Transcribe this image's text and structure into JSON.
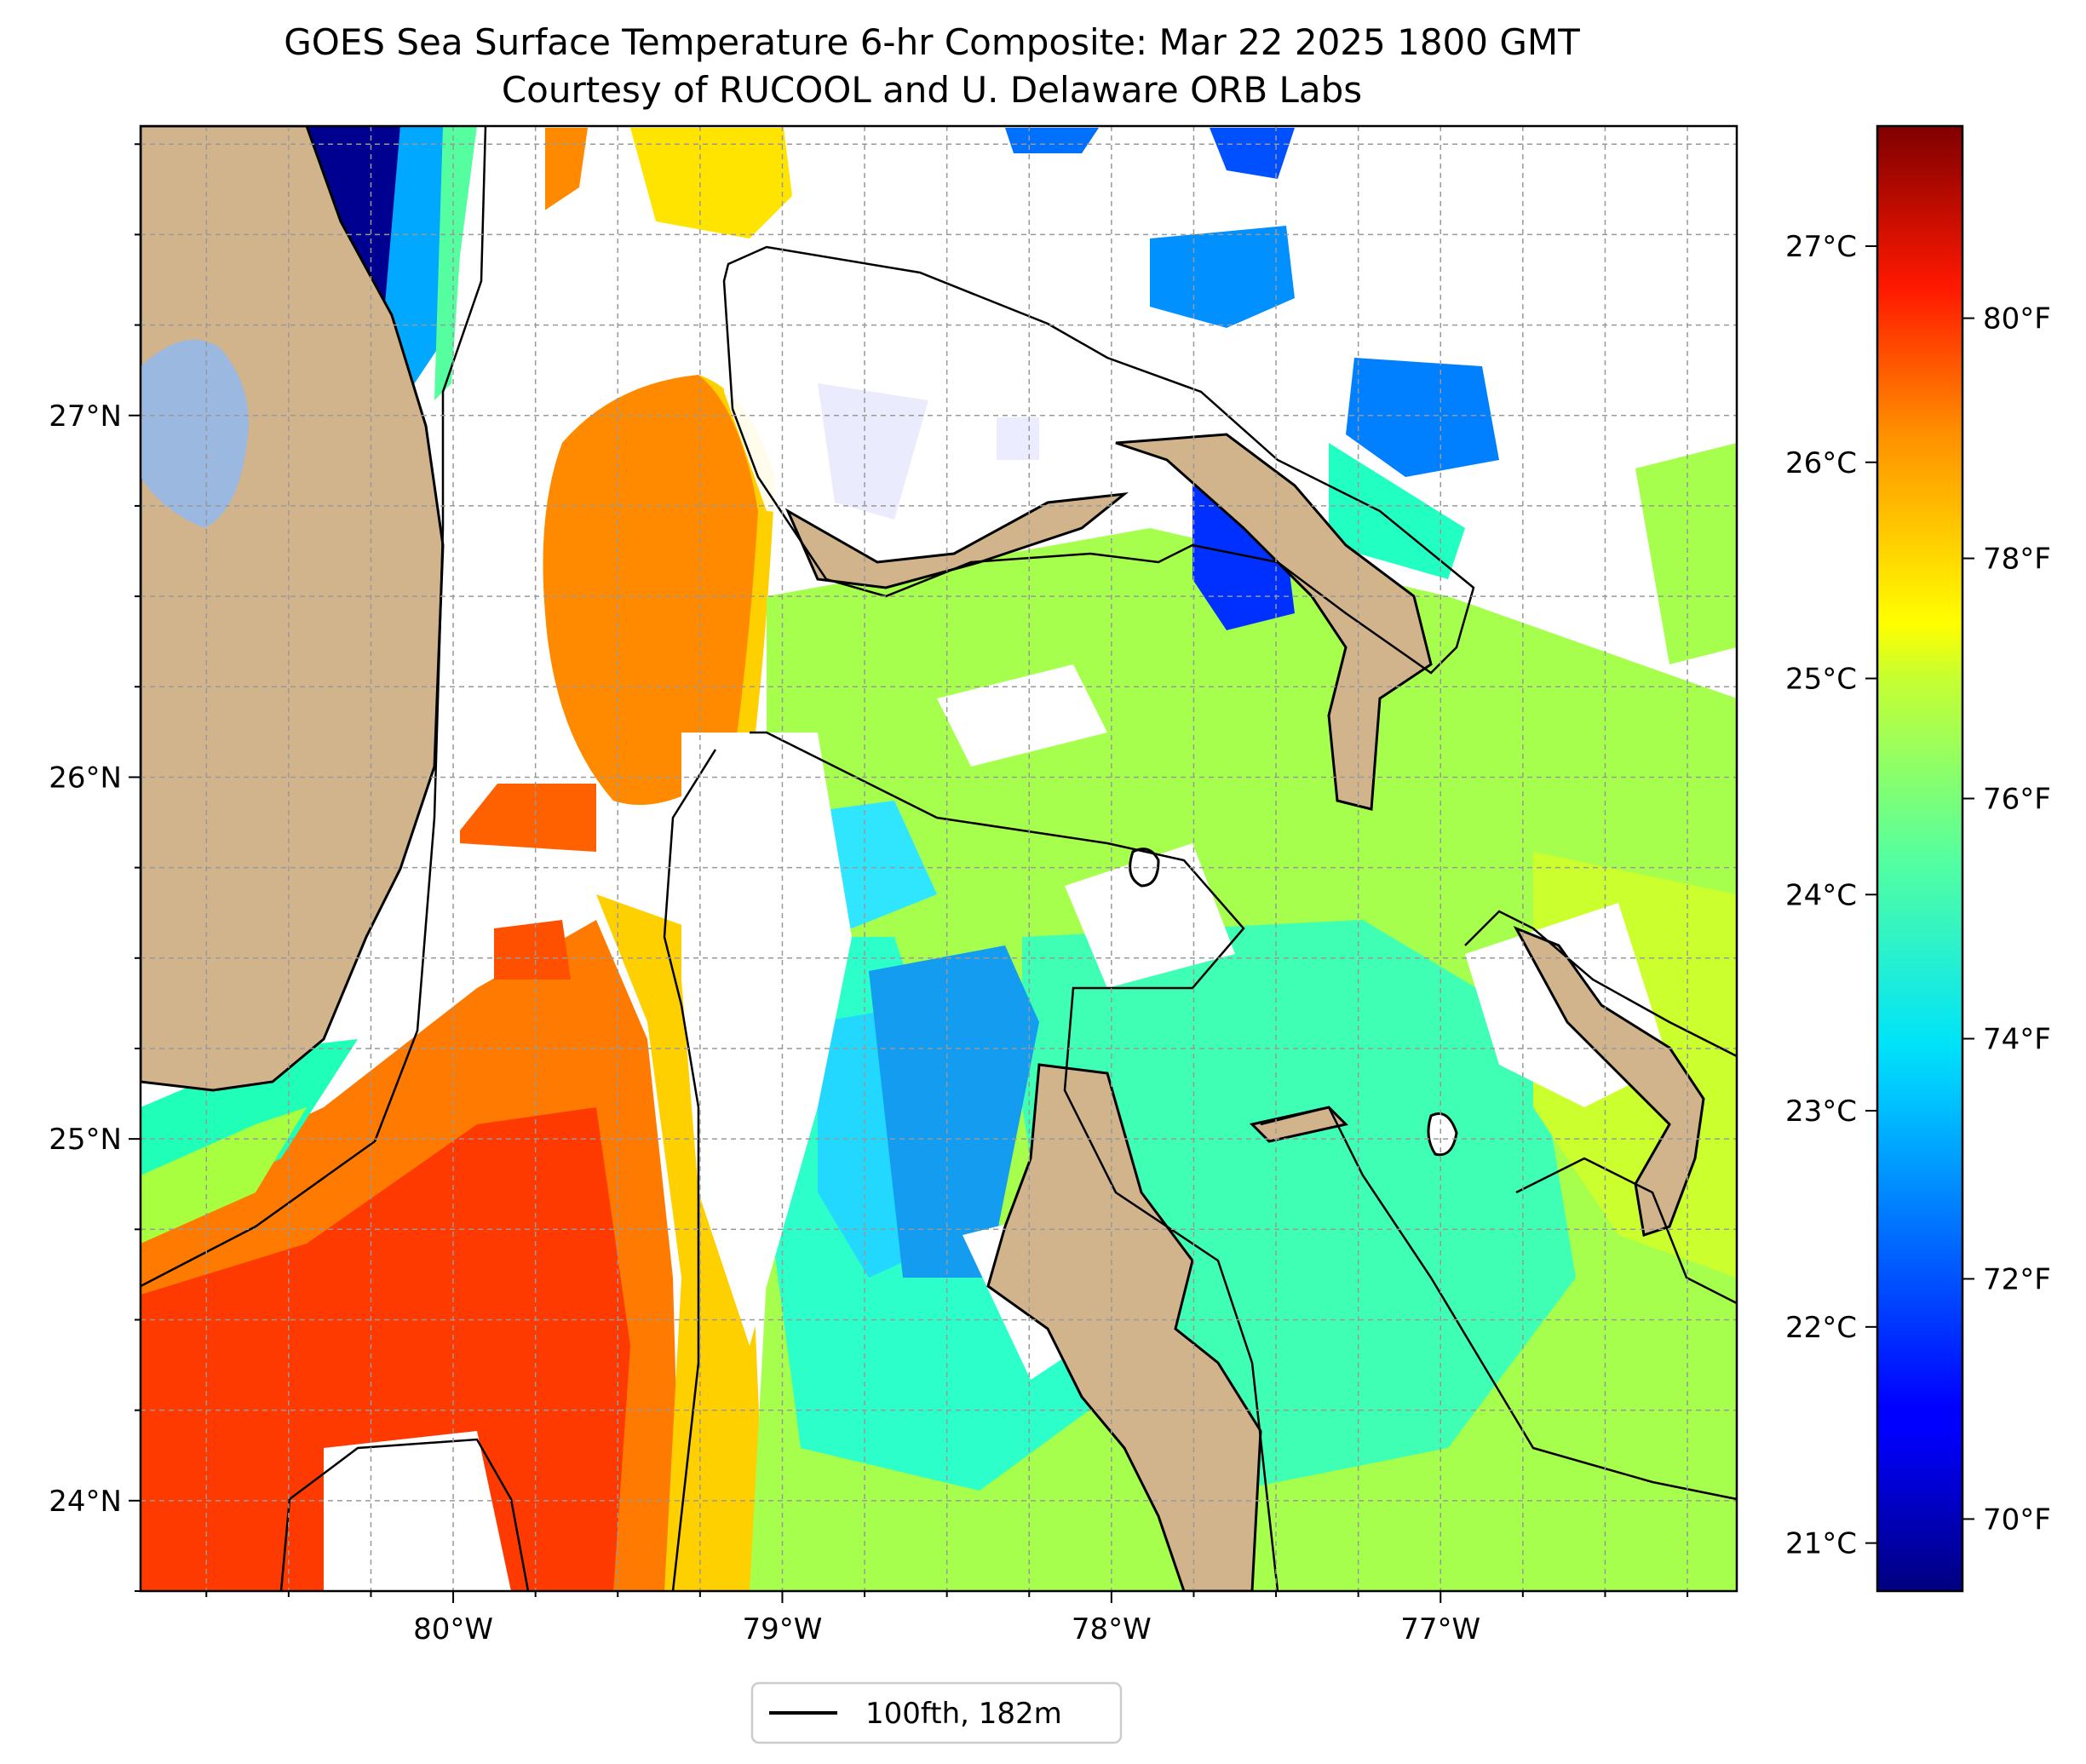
{
  "title": {
    "line1": "GOES Sea Surface Temperature 6-hr Composite: Mar 22 2025 1800 GMT",
    "line2": "Courtesy of RUCOOL and U. Delaware ORB Labs"
  },
  "map": {
    "lon_range": [
      -80.95,
      -76.1
    ],
    "lat_range": [
      23.75,
      27.8
    ],
    "lon_ticks": [
      {
        "value": -80,
        "label": "80°W"
      },
      {
        "value": -79,
        "label": "79°W"
      },
      {
        "value": -78,
        "label": "78°W"
      },
      {
        "value": -77,
        "label": "77°W"
      }
    ],
    "lat_ticks": [
      {
        "value": 27,
        "label": "27°N"
      },
      {
        "value": 26,
        "label": "26°N"
      },
      {
        "value": 25,
        "label": "25°N"
      },
      {
        "value": 24,
        "label": "24°N"
      }
    ],
    "grid": true,
    "land_color": "#d2b48c",
    "lake_color": "#9bb8e0",
    "nodata_color": "#ffffff"
  },
  "colorbar": {
    "colormap": "jet",
    "fahrenheit_ticks": [
      "70°F",
      "72°F",
      "74°F",
      "76°F",
      "78°F",
      "80°F"
    ],
    "celsius_ticks": [
      "21°C",
      "22°C",
      "23°C",
      "24°C",
      "25°C",
      "26°C",
      "27°C"
    ]
  },
  "legend": {
    "label": "100fth, 182m",
    "line_color": "#000000"
  }
}
